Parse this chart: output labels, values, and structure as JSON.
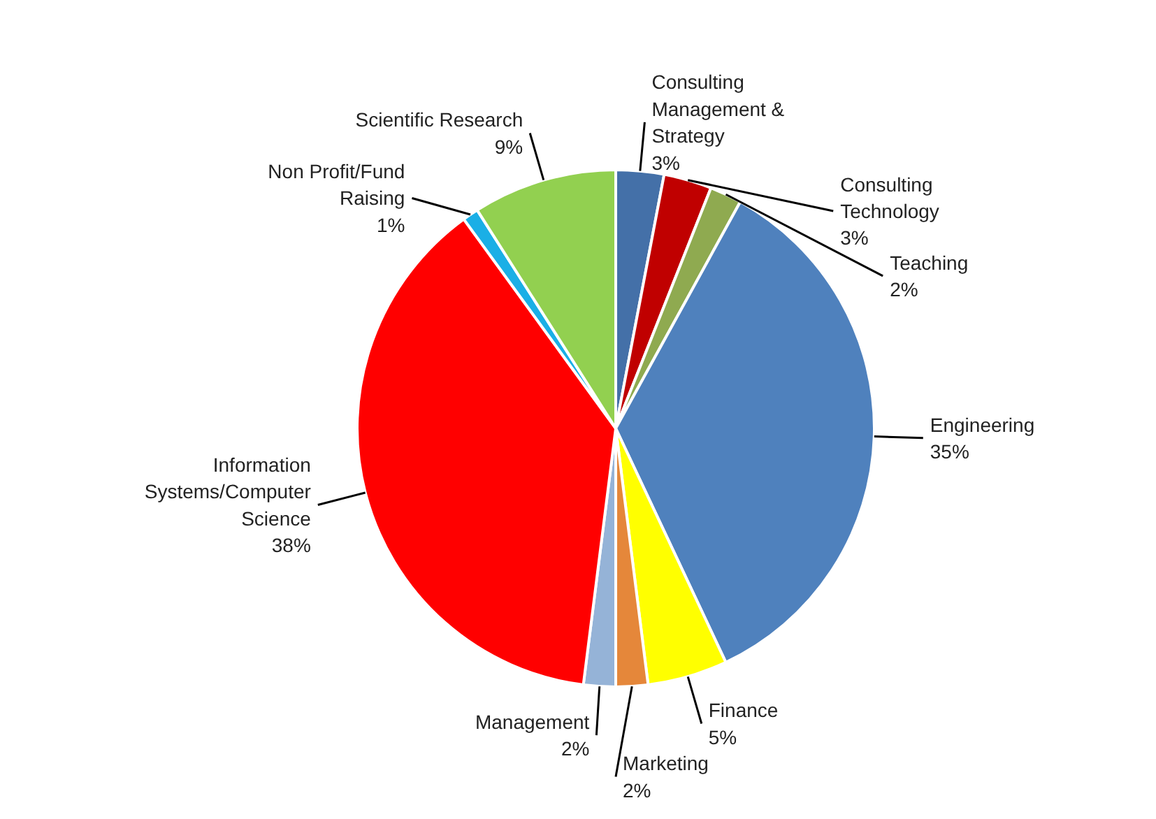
{
  "chart_data": {
    "type": "pie",
    "categories": [
      "Consulting Management & Strategy",
      "Consulting Technology",
      "Teaching",
      "Engineering",
      "Finance",
      "Marketing",
      "Management",
      "Information Systems/Computer Science",
      "Non Profit/Fund Raising",
      "Scientific Research"
    ],
    "values": [
      3,
      3,
      2,
      35,
      5,
      2,
      2,
      38,
      1,
      9
    ],
    "colors": [
      "#4470a8",
      "#c00000",
      "#8faa50",
      "#4f81bd",
      "#ffff00",
      "#e5873a",
      "#95b3d7",
      "#ff0000",
      "#1aafe6",
      "#92d050"
    ],
    "value_labels": [
      "3%",
      "3%",
      "2%",
      "35%",
      "5%",
      "2%",
      "2%",
      "38%",
      "1%",
      "9%"
    ]
  }
}
